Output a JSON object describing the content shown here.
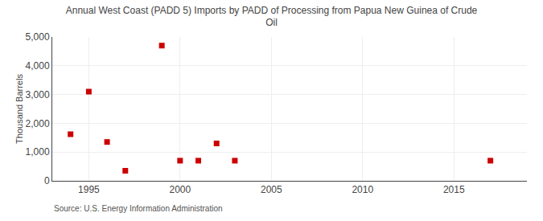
{
  "chart_data": {
    "type": "scatter",
    "title": "Annual West Coast (PADD 5) Imports by PADD of Processing from Papua New Guinea of Crude\nOil",
    "ylabel": "Thousand Barrels",
    "annotations": [
      "Source: U.S. Energy Information Administration"
    ],
    "x": [
      1994,
      1995,
      1996,
      1997,
      1999,
      2000,
      2001,
      2002,
      2003,
      2017
    ],
    "values": [
      1620,
      3100,
      1350,
      350,
      4700,
      700,
      700,
      1300,
      700,
      700
    ],
    "color": "#cc0000",
    "marker": "square",
    "xlim": [
      1993,
      2019
    ],
    "xticks": [
      1995,
      2000,
      2005,
      2010,
      2015
    ],
    "ylim": [
      0,
      5000
    ],
    "yticks": [
      0,
      {
        "value": 1000,
        "label": "1,000"
      },
      {
        "value": 2000,
        "label": "2,000"
      },
      {
        "value": 3000,
        "label": "3,000"
      },
      {
        "value": 4000,
        "label": "4,000"
      },
      {
        "value": 5000,
        "label": "5,000"
      }
    ],
    "grid": true
  }
}
